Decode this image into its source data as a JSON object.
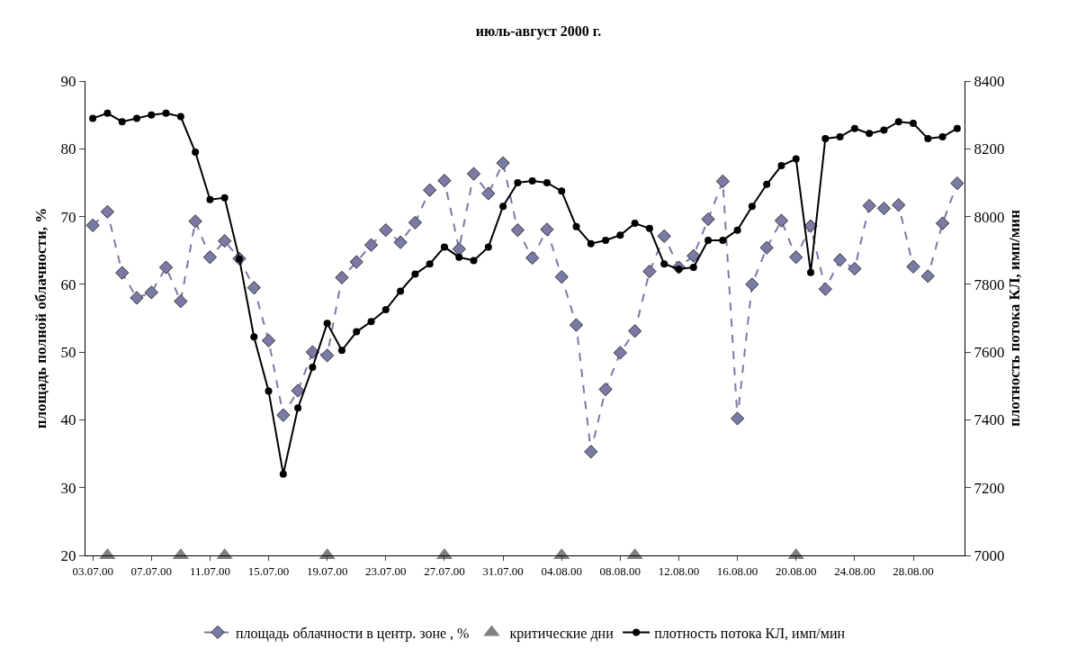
{
  "chart_data": {
    "type": "line",
    "title": "июль-август 2000 г.",
    "ylabel": "площадь полной облачности, %",
    "y2label": "плотность потока КЛ, имп/мин",
    "categories": [
      "03.07.00",
      null,
      null,
      null,
      "07.07.00",
      null,
      null,
      null,
      "11.07.00",
      null,
      null,
      null,
      "15.07.00",
      null,
      null,
      null,
      "19.07.00",
      null,
      null,
      null,
      "23.07.00",
      null,
      null,
      null,
      "27.07.00",
      null,
      null,
      null,
      "31.07.00",
      null,
      null,
      null,
      "04.08.00",
      null,
      null,
      null,
      "08.08.00",
      null,
      null,
      null,
      "12.08.00",
      null,
      null,
      null,
      "16.08.00",
      null,
      null,
      null,
      "20.08.00",
      null,
      null,
      null,
      "24.08.00",
      null,
      null,
      null,
      "28.08.00",
      null,
      null,
      null
    ],
    "series": [
      {
        "name": "площадь облачности в центр. зоне , %",
        "color": "#7a7aa6",
        "marker": "diamond",
        "line_style": "dashed",
        "values": [
          68.7,
          70.7,
          61.7,
          58.0,
          58.8,
          62.5,
          57.5,
          69.3,
          64.0,
          66.4,
          63.8,
          59.5,
          51.7,
          40.7,
          44.3,
          50.0,
          49.5,
          61.0,
          63.3,
          65.8,
          68.0,
          66.2,
          69.1,
          73.9,
          75.3,
          65.2,
          76.3,
          73.4,
          77.9,
          68.0,
          63.9,
          68.1,
          61.1,
          54.0,
          35.3,
          44.5,
          49.9,
          53.1,
          61.9,
          67.1,
          62.5,
          64.2,
          69.6,
          75.2,
          40.2,
          60.0,
          65.4,
          69.4,
          64.0,
          68.6,
          59.3,
          63.6,
          62.3,
          71.6,
          71.2,
          71.7,
          62.6,
          61.2,
          69.0,
          74.9
        ]
      },
      {
        "name": "критические дни",
        "type": "scatter",
        "color": "#808080",
        "marker": "triangle",
        "values": [
          null,
          20,
          null,
          null,
          null,
          null,
          20,
          null,
          null,
          20,
          null,
          null,
          null,
          null,
          null,
          null,
          20,
          null,
          null,
          null,
          null,
          null,
          null,
          null,
          20,
          null,
          null,
          null,
          null,
          null,
          null,
          null,
          20,
          null,
          null,
          null,
          null,
          20,
          null,
          null,
          null,
          null,
          null,
          null,
          null,
          null,
          null,
          null,
          20,
          null,
          null,
          null,
          null,
          null,
          null,
          null,
          null,
          null,
          null,
          null
        ]
      },
      {
        "name": "плотность потока КЛ, имп/мин",
        "axis": "y2",
        "color": "#000000",
        "marker": "circle",
        "line_style": "solid",
        "values": [
          8290,
          8305,
          8280,
          8290,
          8300,
          8305,
          8295,
          8190,
          8050,
          8055,
          7875,
          7645,
          7485,
          7240,
          7435,
          7555,
          7685,
          7605,
          7660,
          7690,
          7725,
          7780,
          7830,
          7860,
          7910,
          7880,
          7870,
          7910,
          8030,
          8100,
          8105,
          8100,
          8075,
          7970,
          7920,
          7930,
          7945,
          7980,
          7965,
          7860,
          7845,
          7850,
          7930,
          7930,
          7960,
          8030,
          8095,
          8150,
          8170,
          7835,
          8230,
          8235,
          8260,
          8245,
          8255,
          8280,
          8275,
          8230,
          8235,
          8260
        ]
      }
    ],
    "ylim": [
      20,
      90
    ],
    "yticks": [
      20,
      30,
      40,
      50,
      60,
      70,
      80,
      90
    ],
    "y2lim": [
      7000,
      8400
    ],
    "y2ticks": [
      7000,
      7200,
      7400,
      7600,
      7800,
      8000,
      8200,
      8400
    ],
    "grid": false,
    "legend": "bottom"
  }
}
